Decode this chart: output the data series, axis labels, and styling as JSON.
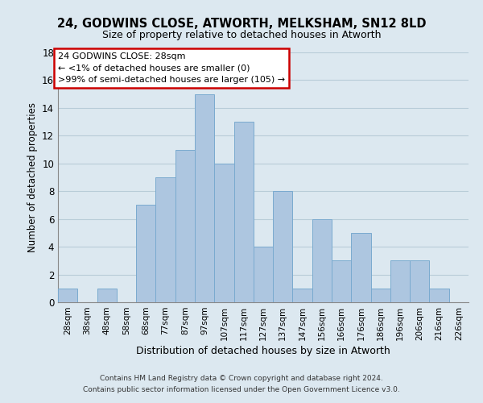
{
  "title": "24, GODWINS CLOSE, ATWORTH, MELKSHAM, SN12 8LD",
  "subtitle": "Size of property relative to detached houses in Atworth",
  "xlabel": "Distribution of detached houses by size in Atworth",
  "ylabel": "Number of detached properties",
  "categories": [
    "28sqm",
    "38sqm",
    "48sqm",
    "58sqm",
    "68sqm",
    "77sqm",
    "87sqm",
    "97sqm",
    "107sqm",
    "117sqm",
    "127sqm",
    "137sqm",
    "147sqm",
    "156sqm",
    "166sqm",
    "176sqm",
    "186sqm",
    "196sqm",
    "206sqm",
    "216sqm",
    "226sqm"
  ],
  "values": [
    1,
    0,
    1,
    0,
    7,
    9,
    11,
    15,
    10,
    13,
    4,
    8,
    1,
    6,
    3,
    5,
    1,
    3,
    3,
    1,
    0
  ],
  "bar_color": "#adc6e0",
  "bar_edge_color": "#7aaacf",
  "ylim": [
    0,
    18
  ],
  "yticks": [
    0,
    2,
    4,
    6,
    8,
    10,
    12,
    14,
    16,
    18
  ],
  "annotation_line1": "24 GODWINS CLOSE: 28sqm",
  "annotation_line2": "← <1% of detached houses are smaller (0)",
  "annotation_line3": ">99% of semi-detached houses are larger (105) →",
  "footer_line1": "Contains HM Land Registry data © Crown copyright and database right 2024.",
  "footer_line2": "Contains public sector information licensed under the Open Government Licence v3.0.",
  "background_color": "#dce8f0",
  "plot_background_color": "#dce8f0",
  "grid_color": "#b8ccd8",
  "title_fontsize": 10.5,
  "subtitle_fontsize": 9
}
